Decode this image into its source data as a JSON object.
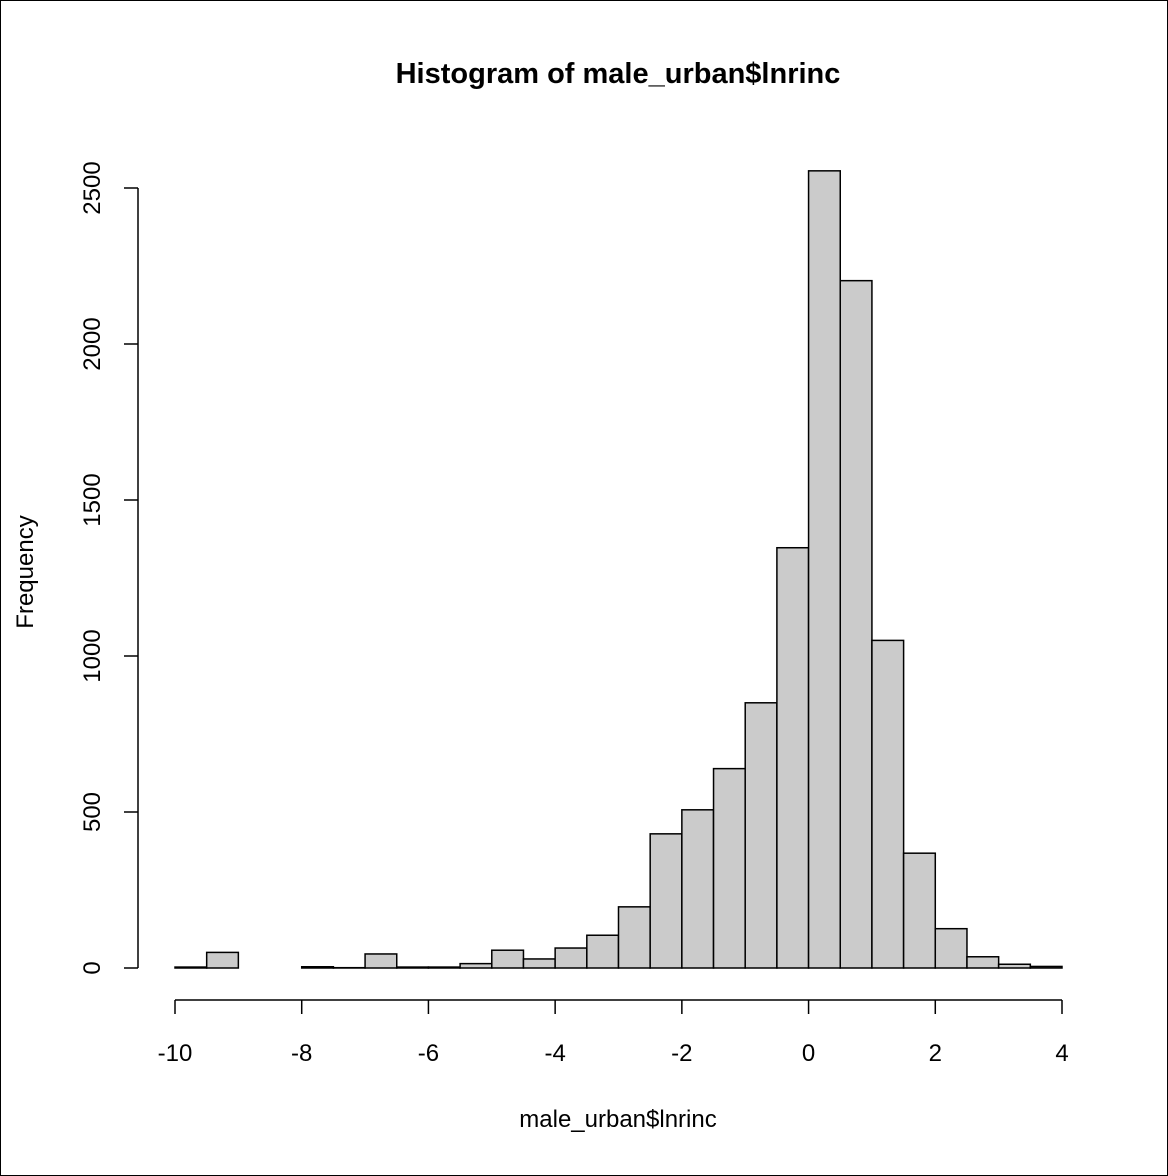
{
  "chart_data": {
    "type": "histogram",
    "title": "Histogram of male_urban$lnrinc",
    "xlabel": "male_urban$lnrinc",
    "ylabel": "Frequency",
    "x_ticks": [
      -10,
      -8,
      -6,
      -4,
      -2,
      0,
      2,
      4
    ],
    "y_ticks": [
      0,
      500,
      1000,
      1500,
      2000,
      2500
    ],
    "xlim": [
      -10,
      4
    ],
    "ylim": [
      0,
      2500
    ],
    "bin_width": 0.5,
    "bins": [
      {
        "x0": -10.0,
        "x1": -9.5,
        "count": 3
      },
      {
        "x0": -9.5,
        "x1": -9.0,
        "count": 50
      },
      {
        "x0": -9.0,
        "x1": -8.5,
        "count": 0
      },
      {
        "x0": -8.5,
        "x1": -8.0,
        "count": 0
      },
      {
        "x0": -8.0,
        "x1": -7.5,
        "count": 4
      },
      {
        "x0": -7.5,
        "x1": -7.0,
        "count": 1
      },
      {
        "x0": -7.0,
        "x1": -6.5,
        "count": 45
      },
      {
        "x0": -6.5,
        "x1": -6.0,
        "count": 3
      },
      {
        "x0": -6.0,
        "x1": -5.5,
        "count": 3
      },
      {
        "x0": -5.5,
        "x1": -5.0,
        "count": 14
      },
      {
        "x0": -5.0,
        "x1": -4.5,
        "count": 57
      },
      {
        "x0": -4.5,
        "x1": -4.0,
        "count": 29
      },
      {
        "x0": -4.0,
        "x1": -3.5,
        "count": 64
      },
      {
        "x0": -3.5,
        "x1": -3.0,
        "count": 105
      },
      {
        "x0": -3.0,
        "x1": -2.5,
        "count": 196
      },
      {
        "x0": -2.5,
        "x1": -2.0,
        "count": 430
      },
      {
        "x0": -2.0,
        "x1": -1.5,
        "count": 507
      },
      {
        "x0": -1.5,
        "x1": -1.0,
        "count": 639
      },
      {
        "x0": -1.0,
        "x1": -0.5,
        "count": 850
      },
      {
        "x0": -0.5,
        "x1": 0.0,
        "count": 1347
      },
      {
        "x0": 0.0,
        "x1": 0.5,
        "count": 2555
      },
      {
        "x0": 0.5,
        "x1": 1.0,
        "count": 2203
      },
      {
        "x0": 1.0,
        "x1": 1.5,
        "count": 1050
      },
      {
        "x0": 1.5,
        "x1": 2.0,
        "count": 368
      },
      {
        "x0": 2.0,
        "x1": 2.5,
        "count": 126
      },
      {
        "x0": 2.5,
        "x1": 3.0,
        "count": 36
      },
      {
        "x0": 3.0,
        "x1": 3.5,
        "count": 12
      },
      {
        "x0": 3.5,
        "x1": 4.0,
        "count": 5
      }
    ],
    "colors": {
      "bar_fill": "#cbcbcb",
      "bar_stroke": "#000000",
      "axis": "#000000",
      "background": "#ffffff"
    },
    "grid": false,
    "legend": "none"
  }
}
